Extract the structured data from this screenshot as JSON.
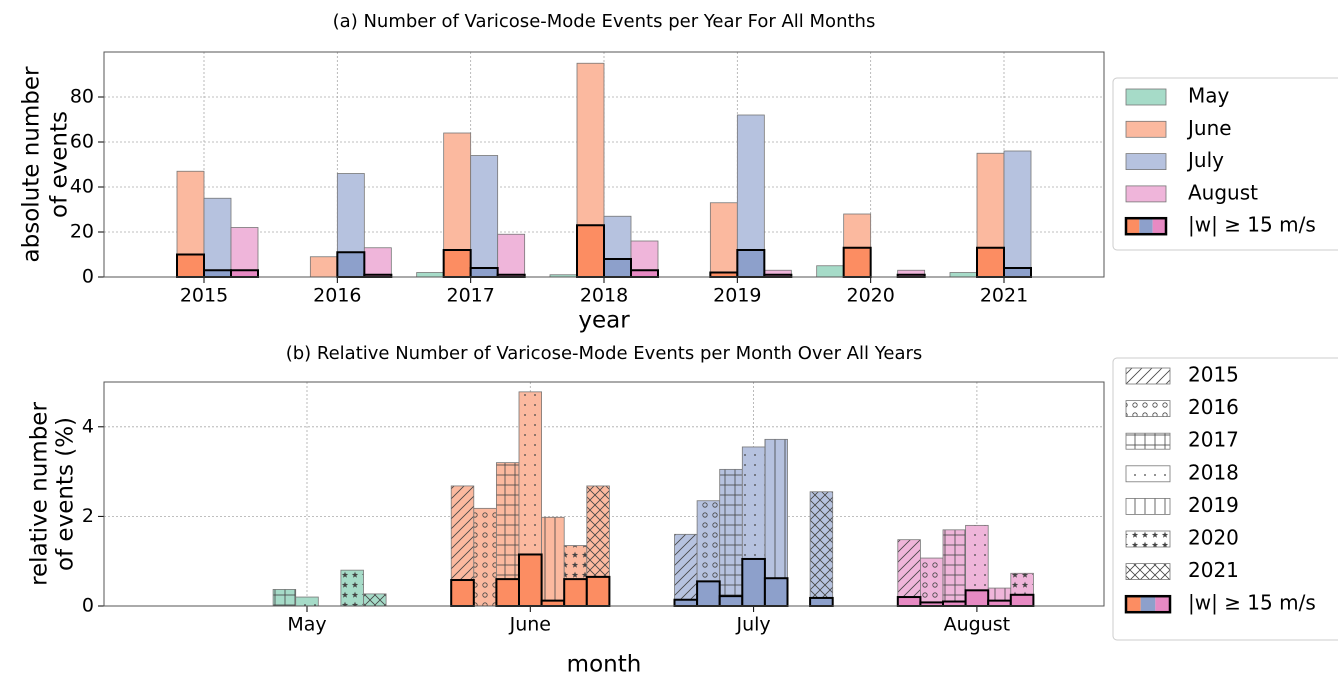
{
  "chart_data": [
    {
      "type": "bar",
      "title": "(a) Number of Varicose-Mode Events per Year For All Months",
      "xlabel": "year",
      "ylabel": [
        "absolute number",
        "of events"
      ],
      "categories": [
        "2015",
        "2016",
        "2017",
        "2018",
        "2019",
        "2020",
        "2021"
      ],
      "series": [
        {
          "name": "May",
          "color": "#a6dbc8",
          "highlight_color": "#66c2a5",
          "values": [
            0,
            0,
            2,
            1,
            0,
            5,
            2
          ],
          "highlight_values": [
            0,
            0,
            0,
            0,
            0,
            0,
            0
          ]
        },
        {
          "name": "June",
          "color": "#fbb99f",
          "highlight_color": "#fc8d62",
          "values": [
            47,
            9,
            64,
            95,
            33,
            28,
            55
          ],
          "highlight_values": [
            10,
            0,
            12,
            23,
            2,
            13,
            13
          ]
        },
        {
          "name": "July",
          "color": "#b6c2df",
          "highlight_color": "#8da0cb",
          "values": [
            35,
            46,
            54,
            27,
            72,
            0,
            56
          ],
          "highlight_values": [
            3,
            11,
            4,
            8,
            12,
            0,
            4
          ]
        },
        {
          "name": "August",
          "color": "#efb5da",
          "highlight_color": "#e78ac3",
          "values": [
            22,
            13,
            19,
            16,
            3,
            3,
            0
          ],
          "highlight_values": [
            3,
            1,
            1,
            3,
            1,
            1,
            0
          ]
        }
      ],
      "highlight_label": "|w| ≥ 15 m/s",
      "ylim": [
        0,
        100
      ],
      "yticks": [
        0,
        20,
        40,
        60,
        80
      ],
      "grid": true,
      "legend": "outside right"
    },
    {
      "type": "hatched-bar",
      "title": "(b) Relative Number of Varicose-Mode Events per Month Over All Years",
      "xlabel": "month",
      "ylabel": [
        "relative number",
        "of events (%)"
      ],
      "categories": [
        "May",
        "June",
        "July",
        "August"
      ],
      "category_colors": [
        "#a6dbc8",
        "#fbb99f",
        "#b6c2df",
        "#efb5da"
      ],
      "category_highlight_colors": [
        "#66c2a5",
        "#fc8d62",
        "#8da0cb",
        "#e78ac3"
      ],
      "series": [
        {
          "name": "2015",
          "hatch": "/",
          "values": [
            0,
            2.68,
            1.6,
            1.48
          ],
          "highlight_values": [
            0,
            0.58,
            0.14,
            0.2
          ]
        },
        {
          "name": "2016",
          "hatch": "o",
          "values": [
            0,
            2.18,
            2.35,
            1.07
          ],
          "highlight_values": [
            0,
            0,
            0.55,
            0.08
          ]
        },
        {
          "name": "2017",
          "hatch": "+",
          "values": [
            0.37,
            3.2,
            3.05,
            1.7
          ],
          "highlight_values": [
            0,
            0.6,
            0.22,
            0.1
          ]
        },
        {
          "name": "2018",
          "hatch": ".",
          "values": [
            0.2,
            4.78,
            3.55,
            1.8
          ],
          "highlight_values": [
            0,
            1.15,
            1.05,
            0.35
          ]
        },
        {
          "name": "2019",
          "hatch": "|",
          "values": [
            0,
            1.98,
            3.72,
            0.4
          ],
          "highlight_values": [
            0,
            0.12,
            0.62,
            0.12
          ]
        },
        {
          "name": "2020",
          "hatch": "*",
          "values": [
            0.8,
            1.35,
            0,
            0.73
          ],
          "highlight_values": [
            0,
            0.6,
            0,
            0.25
          ]
        },
        {
          "name": "2021",
          "hatch": "x",
          "values": [
            0.27,
            2.68,
            2.55,
            0
          ],
          "highlight_values": [
            0,
            0.65,
            0.18,
            0
          ]
        }
      ],
      "highlight_label": "|w| ≥ 15 m/s",
      "ylim": [
        0,
        5
      ],
      "yticks": [
        0,
        2,
        4
      ],
      "grid": true,
      "legend": "outside right"
    }
  ]
}
